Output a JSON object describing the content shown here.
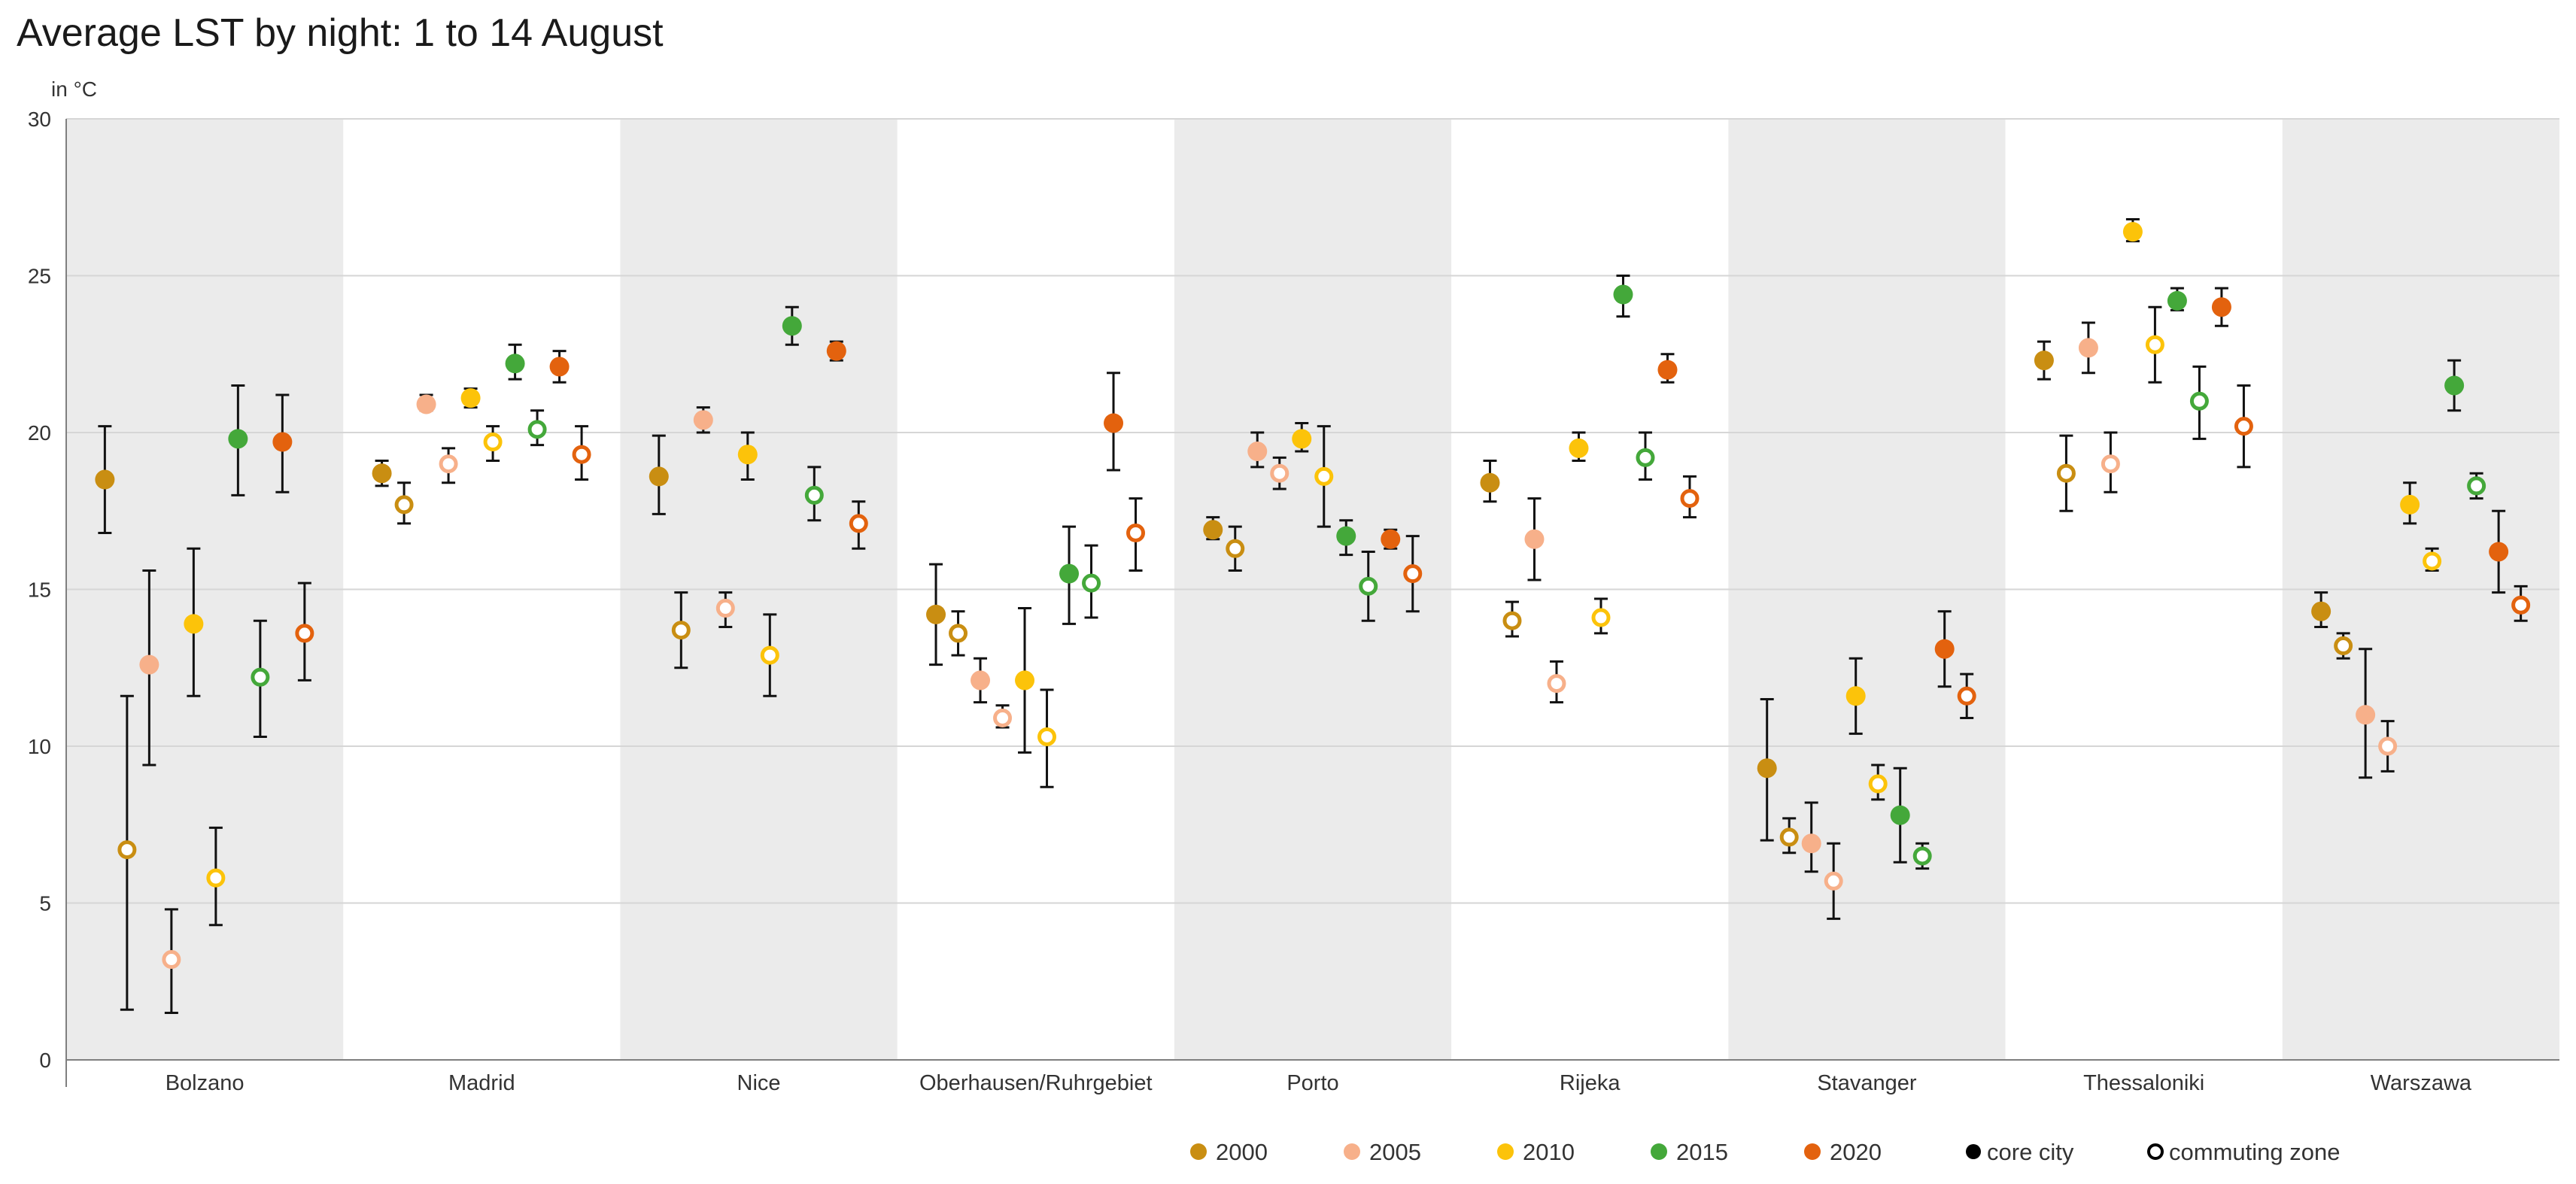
{
  "chart_data": {
    "type": "scatter",
    "title": "Average LST by night: 1 to 14 August",
    "ylabel": "in °C",
    "ylim": [
      0,
      30
    ],
    "yticks": [
      0,
      5,
      10,
      15,
      20,
      25,
      30
    ],
    "grid": true,
    "legend_position": "bottom-right",
    "categories": [
      "Bolzano",
      "Madrid",
      "Nice",
      "Oberhausen/Ruhrgebiet",
      "Porto",
      "Rijeka",
      "Stavanger",
      "Thessaloniki",
      "Warszawa"
    ],
    "shaded_categories": [
      0,
      2,
      4,
      6,
      8
    ],
    "years": [
      "2000",
      "2005",
      "2010",
      "2015",
      "2020"
    ],
    "colors": {
      "2000": "#c98e12",
      "2005": "#f7b08a",
      "2010": "#fcc30a",
      "2015": "#44a83a",
      "2020": "#e3620e"
    },
    "type_legend": {
      "core": "core city",
      "commuting": "commuting zone"
    },
    "series": [
      {
        "name": "2000",
        "type": "core",
        "values": [
          18.5,
          18.7,
          18.6,
          14.2,
          16.9,
          18.4,
          9.3,
          22.3,
          14.3
        ],
        "lower": [
          16.8,
          18.3,
          17.4,
          12.6,
          16.6,
          17.8,
          7.0,
          21.7,
          13.8
        ],
        "upper": [
          20.2,
          19.1,
          19.9,
          15.8,
          17.3,
          19.1,
          11.5,
          22.9,
          14.9
        ]
      },
      {
        "name": "2000",
        "type": "commuting",
        "values": [
          6.7,
          17.7,
          13.7,
          13.6,
          16.3,
          14.0,
          7.1,
          18.7,
          13.2
        ],
        "lower": [
          1.6,
          17.1,
          12.5,
          12.9,
          15.6,
          13.5,
          6.6,
          17.5,
          12.8
        ],
        "upper": [
          11.6,
          18.4,
          14.9,
          14.3,
          17.0,
          14.6,
          7.7,
          19.9,
          13.6
        ]
      },
      {
        "name": "2005",
        "type": "core",
        "values": [
          12.6,
          20.9,
          20.4,
          12.1,
          19.4,
          16.6,
          6.9,
          22.7,
          11.0
        ],
        "lower": [
          9.4,
          20.7,
          20.0,
          11.4,
          18.9,
          15.3,
          6.0,
          21.9,
          9.0
        ],
        "upper": [
          15.6,
          21.2,
          20.8,
          12.8,
          20.0,
          17.9,
          8.2,
          23.5,
          13.1
        ]
      },
      {
        "name": "2005",
        "type": "commuting",
        "values": [
          3.2,
          19.0,
          14.4,
          10.9,
          18.7,
          12.0,
          5.7,
          19.0,
          10.0
        ],
        "lower": [
          1.5,
          18.4,
          13.8,
          10.6,
          18.2,
          11.4,
          4.5,
          18.1,
          9.2
        ],
        "upper": [
          4.8,
          19.5,
          14.9,
          11.3,
          19.2,
          12.7,
          6.9,
          20.0,
          10.8
        ]
      },
      {
        "name": "2010",
        "type": "core",
        "values": [
          13.9,
          21.1,
          19.3,
          12.1,
          19.8,
          19.5,
          11.6,
          26.4,
          17.7
        ],
        "lower": [
          11.6,
          20.8,
          18.5,
          9.8,
          19.4,
          19.1,
          10.4,
          26.1,
          17.1
        ],
        "upper": [
          16.3,
          21.4,
          20.0,
          14.4,
          20.3,
          20.0,
          12.8,
          26.8,
          18.4
        ]
      },
      {
        "name": "2010",
        "type": "commuting",
        "values": [
          5.8,
          19.7,
          12.9,
          10.3,
          18.6,
          14.1,
          8.8,
          22.8,
          15.9
        ],
        "lower": [
          4.3,
          19.1,
          11.6,
          8.7,
          17.0,
          13.6,
          8.3,
          21.6,
          15.6
        ],
        "upper": [
          7.4,
          20.2,
          14.2,
          11.8,
          20.2,
          14.7,
          9.4,
          24.0,
          16.3
        ]
      },
      {
        "name": "2015",
        "type": "core",
        "values": [
          19.8,
          22.2,
          23.4,
          15.5,
          16.7,
          24.4,
          7.8,
          24.2,
          21.5
        ],
        "lower": [
          18.0,
          21.7,
          22.8,
          13.9,
          16.1,
          23.7,
          6.3,
          23.9,
          20.7
        ],
        "upper": [
          21.5,
          22.8,
          24.0,
          17.0,
          17.2,
          25.0,
          9.3,
          24.6,
          22.3
        ]
      },
      {
        "name": "2015",
        "type": "commuting",
        "values": [
          12.2,
          20.1,
          18.0,
          15.2,
          15.1,
          19.2,
          6.5,
          21.0,
          18.3
        ],
        "lower": [
          10.3,
          19.6,
          17.2,
          14.1,
          14.0,
          18.5,
          6.1,
          19.8,
          17.9
        ],
        "upper": [
          14.0,
          20.7,
          18.9,
          16.4,
          16.2,
          20.0,
          6.9,
          22.1,
          18.7
        ]
      },
      {
        "name": "2020",
        "type": "core",
        "values": [
          19.7,
          22.1,
          22.6,
          20.3,
          16.6,
          22.0,
          13.1,
          24.0,
          16.2
        ],
        "lower": [
          18.1,
          21.6,
          22.3,
          18.8,
          16.3,
          21.6,
          11.9,
          23.4,
          14.9
        ],
        "upper": [
          21.2,
          22.6,
          22.9,
          21.9,
          16.9,
          22.5,
          14.3,
          24.6,
          17.5
        ]
      },
      {
        "name": "2020",
        "type": "commuting",
        "values": [
          13.6,
          19.3,
          17.1,
          16.8,
          15.5,
          17.9,
          11.6,
          20.2,
          14.5
        ],
        "lower": [
          12.1,
          18.5,
          16.3,
          15.6,
          14.3,
          17.3,
          10.9,
          18.9,
          14.0
        ],
        "upper": [
          15.2,
          20.2,
          17.8,
          17.9,
          16.7,
          18.6,
          12.3,
          21.5,
          15.1
        ]
      }
    ]
  }
}
